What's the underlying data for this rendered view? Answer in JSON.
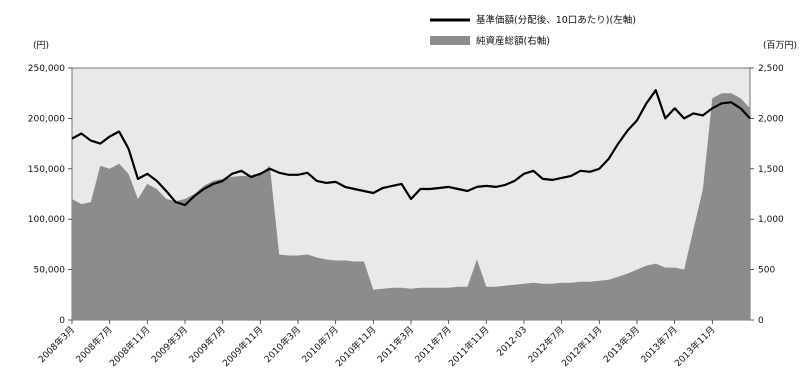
{
  "chart_data": {
    "type": "line",
    "colors": {
      "background": "#e9e9e9",
      "area": "#8c8c8c",
      "line": "#000000"
    },
    "legend": {
      "placement": "top-right",
      "entries": [
        {
          "label": "基準価額(分配後、10口あたり)(左軸)",
          "kind": "line"
        },
        {
          "label": "純資産総額(右軸)",
          "kind": "area"
        }
      ]
    },
    "left_axis": {
      "unit": "(円)",
      "ylim": [
        0,
        250000
      ],
      "ticks": [
        0,
        50000,
        100000,
        150000,
        200000,
        250000
      ],
      "tick_labels": [
        "0",
        "50,000",
        "100,000",
        "150,000",
        "200,000",
        "250,000"
      ]
    },
    "right_axis": {
      "unit": "(百万円)",
      "ylim": [
        0,
        2500
      ],
      "ticks": [
        0,
        500,
        1000,
        1500,
        2000,
        2500
      ],
      "tick_labels": [
        "0",
        "500",
        "1,000",
        "1,500",
        "2,000",
        "2,500"
      ]
    },
    "x_axis": {
      "range": [
        "2008-03",
        "2014-03"
      ],
      "tick_dates": [
        "2008-03",
        "2008-07",
        "2008-11",
        "2009-03",
        "2009-07",
        "2009-11",
        "2010-03",
        "2010-07",
        "2010-11",
        "2011-03",
        "2011-07",
        "2011-11",
        "2012-03",
        "2012-07",
        "2012-11",
        "2013-03",
        "2013-07",
        "2013-11"
      ],
      "tick_labels": [
        "2008年3月",
        "2008年7月",
        "2008年11月",
        "2009年3月",
        "2009年7月",
        "2009年11月",
        "2010年3月",
        "2010年7月",
        "2010年11月",
        "2011年3月",
        "2011年7月",
        "2011年11月",
        "2012-03",
        "2012年7月",
        "2012年11月",
        "2013年3月",
        "2013年7月",
        "2013年11月"
      ]
    },
    "series": [
      {
        "name": "基準価額(分配後、10口あたり)(左軸)",
        "axis": "left",
        "kind": "line",
        "points": [
          [
            "2008-03",
            180000
          ],
          [
            "2008-04",
            185000
          ],
          [
            "2008-05",
            178000
          ],
          [
            "2008-06",
            175000
          ],
          [
            "2008-07",
            182000
          ],
          [
            "2008-08",
            187000
          ],
          [
            "2008-09",
            170000
          ],
          [
            "2008-10",
            140000
          ],
          [
            "2008-11",
            145000
          ],
          [
            "2008-12",
            138000
          ],
          [
            "2009-01",
            128000
          ],
          [
            "2009-02",
            117000
          ],
          [
            "2009-03",
            114000
          ],
          [
            "2009-04",
            123000
          ],
          [
            "2009-05",
            130000
          ],
          [
            "2009-06",
            135000
          ],
          [
            "2009-07",
            138000
          ],
          [
            "2009-08",
            145000
          ],
          [
            "2009-09",
            148000
          ],
          [
            "2009-10",
            142000
          ],
          [
            "2009-11",
            145000
          ],
          [
            "2009-12",
            150000
          ],
          [
            "2010-01",
            146000
          ],
          [
            "2010-02",
            144000
          ],
          [
            "2010-03",
            144000
          ],
          [
            "2010-04",
            146000
          ],
          [
            "2010-05",
            138000
          ],
          [
            "2010-06",
            136000
          ],
          [
            "2010-07",
            137000
          ],
          [
            "2010-08",
            132000
          ],
          [
            "2010-09",
            130000
          ],
          [
            "2010-10",
            128000
          ],
          [
            "2010-11",
            126000
          ],
          [
            "2010-12",
            131000
          ],
          [
            "2011-01",
            133000
          ],
          [
            "2011-02",
            135000
          ],
          [
            "2011-03",
            120000
          ],
          [
            "2011-04",
            130000
          ],
          [
            "2011-05",
            130000
          ],
          [
            "2011-06",
            131000
          ],
          [
            "2011-07",
            132000
          ],
          [
            "2011-08",
            130000
          ],
          [
            "2011-09",
            128000
          ],
          [
            "2011-10",
            132000
          ],
          [
            "2011-11",
            133000
          ],
          [
            "2011-12",
            132000
          ],
          [
            "2012-01",
            134000
          ],
          [
            "2012-02",
            138000
          ],
          [
            "2012-03",
            145000
          ],
          [
            "2012-04",
            148000
          ],
          [
            "2012-05",
            140000
          ],
          [
            "2012-06",
            139000
          ],
          [
            "2012-07",
            141000
          ],
          [
            "2012-08",
            143000
          ],
          [
            "2012-09",
            148000
          ],
          [
            "2012-10",
            147000
          ],
          [
            "2012-11",
            150000
          ],
          [
            "2012-12",
            160000
          ],
          [
            "2013-01",
            175000
          ],
          [
            "2013-02",
            188000
          ],
          [
            "2013-03",
            198000
          ],
          [
            "2013-04",
            215000
          ],
          [
            "2013-05",
            228000
          ],
          [
            "2013-06",
            200000
          ],
          [
            "2013-07",
            210000
          ],
          [
            "2013-08",
            200000
          ],
          [
            "2013-09",
            205000
          ],
          [
            "2013-10",
            203000
          ],
          [
            "2013-11",
            210000
          ],
          [
            "2013-12",
            215000
          ],
          [
            "2014-01",
            216000
          ],
          [
            "2014-02",
            210000
          ],
          [
            "2014-03",
            200000
          ]
        ]
      },
      {
        "name": "純資産総額(右軸)",
        "axis": "right",
        "kind": "area",
        "points": [
          [
            "2008-03",
            1200
          ],
          [
            "2008-04",
            1150
          ],
          [
            "2008-05",
            1170
          ],
          [
            "2008-06",
            1530
          ],
          [
            "2008-07",
            1500
          ],
          [
            "2008-08",
            1550
          ],
          [
            "2008-09",
            1450
          ],
          [
            "2008-10",
            1200
          ],
          [
            "2008-11",
            1350
          ],
          [
            "2008-12",
            1300
          ],
          [
            "2009-01",
            1200
          ],
          [
            "2009-02",
            1180
          ],
          [
            "2009-03",
            1200
          ],
          [
            "2009-04",
            1250
          ],
          [
            "2009-05",
            1330
          ],
          [
            "2009-06",
            1380
          ],
          [
            "2009-07",
            1400
          ],
          [
            "2009-08",
            1420
          ],
          [
            "2009-09",
            1430
          ],
          [
            "2009-10",
            1430
          ],
          [
            "2009-11",
            1450
          ],
          [
            "2009-12",
            1530
          ],
          [
            "2010-01",
            650
          ],
          [
            "2010-02",
            640
          ],
          [
            "2010-03",
            640
          ],
          [
            "2010-04",
            650
          ],
          [
            "2010-05",
            620
          ],
          [
            "2010-06",
            600
          ],
          [
            "2010-07",
            590
          ],
          [
            "2010-08",
            590
          ],
          [
            "2010-09",
            580
          ],
          [
            "2010-10",
            580
          ],
          [
            "2010-11",
            300
          ],
          [
            "2010-12",
            310
          ],
          [
            "2011-01",
            320
          ],
          [
            "2011-02",
            320
          ],
          [
            "2011-03",
            310
          ],
          [
            "2011-04",
            320
          ],
          [
            "2011-05",
            320
          ],
          [
            "2011-06",
            320
          ],
          [
            "2011-07",
            320
          ],
          [
            "2011-08",
            330
          ],
          [
            "2011-09",
            330
          ],
          [
            "2011-10",
            600
          ],
          [
            "2011-11",
            330
          ],
          [
            "2011-12",
            330
          ],
          [
            "2012-01",
            340
          ],
          [
            "2012-02",
            350
          ],
          [
            "2012-03",
            360
          ],
          [
            "2012-04",
            370
          ],
          [
            "2012-05",
            360
          ],
          [
            "2012-06",
            360
          ],
          [
            "2012-07",
            370
          ],
          [
            "2012-08",
            370
          ],
          [
            "2012-09",
            380
          ],
          [
            "2012-10",
            380
          ],
          [
            "2012-11",
            390
          ],
          [
            "2012-12",
            400
          ],
          [
            "2013-01",
            430
          ],
          [
            "2013-02",
            460
          ],
          [
            "2013-03",
            500
          ],
          [
            "2013-04",
            540
          ],
          [
            "2013-05",
            560
          ],
          [
            "2013-06",
            520
          ],
          [
            "2013-07",
            520
          ],
          [
            "2013-08",
            500
          ],
          [
            "2013-09",
            900
          ],
          [
            "2013-10",
            1300
          ],
          [
            "2013-11",
            2200
          ],
          [
            "2013-12",
            2250
          ],
          [
            "2014-01",
            2250
          ],
          [
            "2014-02",
            2200
          ],
          [
            "2014-03",
            2100
          ]
        ]
      }
    ]
  }
}
